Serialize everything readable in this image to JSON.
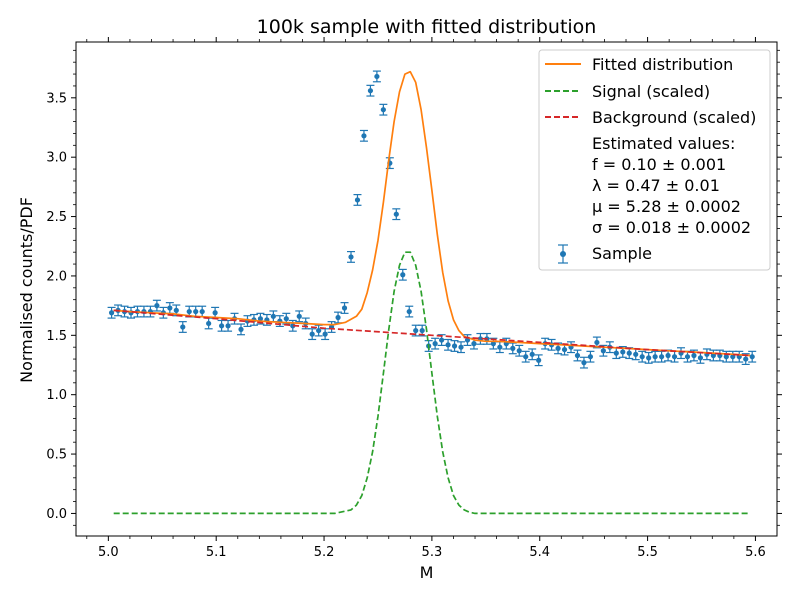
{
  "chart_data": {
    "type": "line",
    "title": "100k sample with fitted distribution",
    "xlabel": "M",
    "ylabel": "Normalised counts/PDF",
    "xlim": [
      4.97,
      5.62
    ],
    "ylim": [
      -0.19,
      3.97
    ],
    "grid": false,
    "legend_placement": "top-right",
    "x_ticks": [
      5.0,
      5.1,
      5.2,
      5.3,
      5.4,
      5.5,
      5.6
    ],
    "x_tick_labels": [
      "5.0",
      "5.1",
      "5.2",
      "5.3",
      "5.4",
      "5.5",
      "5.6"
    ],
    "y_ticks": [
      0.0,
      0.5,
      1.0,
      1.5,
      2.0,
      2.5,
      3.0,
      3.5
    ],
    "y_tick_labels": [
      "0.0",
      "0.5",
      "1.0",
      "1.5",
      "2.0",
      "2.5",
      "3.0",
      "3.5"
    ],
    "legend": {
      "entries": [
        {
          "label": "Fitted distribution",
          "color": "#ff7f0e",
          "style": "solid"
        },
        {
          "label": "Signal (scaled)",
          "color": "#2ca02c",
          "style": "dashed"
        },
        {
          "label": "Background (scaled)",
          "color": "#d62728",
          "style": "dashed"
        },
        {
          "label": "Sample",
          "color": "#1f77b4",
          "style": "errorbar"
        }
      ],
      "estimated_values": [
        "Estimated values:",
        "f = 0.10 ± 0.001",
        "λ = 0.47 ± 0.01",
        "μ = 5.28 ± 0.0002",
        "σ = 0.018 ± 0.0002"
      ]
    },
    "fit_params": {
      "f": 0.1,
      "lambda": 0.47,
      "mu": 5.28,
      "sigma": 0.018
    },
    "series": [
      {
        "name": "Sample",
        "kind": "errorbar",
        "color": "#1f77b4",
        "yerr": 0.045,
        "x": [
          5.003,
          5.009,
          5.015,
          5.021,
          5.027,
          5.033,
          5.039,
          5.045,
          5.051,
          5.057,
          5.063,
          5.069,
          5.075,
          5.081,
          5.087,
          5.093,
          5.099,
          5.105,
          5.111,
          5.117,
          5.123,
          5.129,
          5.135,
          5.141,
          5.147,
          5.153,
          5.159,
          5.165,
          5.171,
          5.177,
          5.183,
          5.189,
          5.195,
          5.201,
          5.207,
          5.213,
          5.219,
          5.225,
          5.231,
          5.237,
          5.243,
          5.249,
          5.255,
          5.261,
          5.267,
          5.273,
          5.279,
          5.285,
          5.291,
          5.297,
          5.303,
          5.309,
          5.315,
          5.321,
          5.327,
          5.333,
          5.339,
          5.345,
          5.351,
          5.357,
          5.363,
          5.369,
          5.375,
          5.381,
          5.387,
          5.393,
          5.399,
          5.405,
          5.411,
          5.417,
          5.423,
          5.429,
          5.435,
          5.441,
          5.447,
          5.453,
          5.459,
          5.465,
          5.471,
          5.477,
          5.483,
          5.489,
          5.495,
          5.501,
          5.507,
          5.513,
          5.519,
          5.525,
          5.531,
          5.537,
          5.543,
          5.549,
          5.555,
          5.561,
          5.567,
          5.573,
          5.579,
          5.585,
          5.591,
          5.597
        ],
        "y": [
          1.69,
          1.71,
          1.7,
          1.69,
          1.7,
          1.7,
          1.7,
          1.75,
          1.69,
          1.73,
          1.71,
          1.57,
          1.7,
          1.7,
          1.7,
          1.6,
          1.69,
          1.58,
          1.58,
          1.64,
          1.55,
          1.62,
          1.63,
          1.64,
          1.63,
          1.66,
          1.62,
          1.64,
          1.58,
          1.66,
          1.6,
          1.51,
          1.54,
          1.51,
          1.57,
          1.65,
          1.73,
          2.16,
          2.64,
          3.18,
          3.56,
          3.68,
          3.4,
          2.95,
          2.52,
          2.01,
          1.7,
          1.54,
          1.54,
          1.41,
          1.43,
          1.46,
          1.42,
          1.41,
          1.4,
          1.46,
          1.43,
          1.47,
          1.47,
          1.43,
          1.4,
          1.43,
          1.39,
          1.37,
          1.32,
          1.34,
          1.29,
          1.43,
          1.42,
          1.39,
          1.38,
          1.4,
          1.33,
          1.27,
          1.32,
          1.44,
          1.37,
          1.4,
          1.35,
          1.36,
          1.35,
          1.34,
          1.32,
          1.31,
          1.32,
          1.32,
          1.33,
          1.32,
          1.35,
          1.32,
          1.33,
          1.31,
          1.34,
          1.33,
          1.33,
          1.32,
          1.32,
          1.32,
          1.3,
          1.32
        ]
      },
      {
        "name": "Fitted distribution",
        "kind": "line",
        "color": "#ff7f0e",
        "x": [
          5.005,
          5.02,
          5.04,
          5.06,
          5.08,
          5.1,
          5.12,
          5.14,
          5.16,
          5.18,
          5.2,
          5.21,
          5.22,
          5.23,
          5.235,
          5.24,
          5.245,
          5.25,
          5.255,
          5.26,
          5.265,
          5.27,
          5.275,
          5.28,
          5.285,
          5.29,
          5.295,
          5.3,
          5.305,
          5.31,
          5.315,
          5.32,
          5.325,
          5.33,
          5.34,
          5.35,
          5.36,
          5.38,
          5.4,
          5.42,
          5.44,
          5.46,
          5.48,
          5.5,
          5.52,
          5.54,
          5.56,
          5.58,
          5.595
        ],
        "y": [
          1.71,
          1.7,
          1.69,
          1.68,
          1.66,
          1.65,
          1.64,
          1.62,
          1.61,
          1.6,
          1.59,
          1.59,
          1.61,
          1.66,
          1.72,
          1.86,
          2.05,
          2.3,
          2.62,
          2.98,
          3.3,
          3.55,
          3.7,
          3.72,
          3.63,
          3.4,
          3.08,
          2.72,
          2.35,
          2.03,
          1.79,
          1.63,
          1.54,
          1.49,
          1.46,
          1.45,
          1.45,
          1.44,
          1.43,
          1.42,
          1.41,
          1.4,
          1.39,
          1.38,
          1.37,
          1.36,
          1.35,
          1.34,
          1.33
        ]
      },
      {
        "name": "Signal (scaled)",
        "kind": "line",
        "color": "#2ca02c",
        "style": "dashed",
        "x": [
          5.005,
          5.1,
          5.2,
          5.21,
          5.22,
          5.225,
          5.23,
          5.235,
          5.24,
          5.245,
          5.25,
          5.255,
          5.26,
          5.265,
          5.27,
          5.275,
          5.28,
          5.285,
          5.29,
          5.295,
          5.3,
          5.305,
          5.31,
          5.315,
          5.32,
          5.325,
          5.33,
          5.335,
          5.34,
          5.35,
          5.36,
          5.4,
          5.5,
          5.595
        ],
        "y": [
          0.0,
          0.0,
          0.0,
          0.0,
          0.02,
          0.03,
          0.07,
          0.15,
          0.3,
          0.52,
          0.82,
          1.18,
          1.55,
          1.87,
          2.09,
          2.2,
          2.2,
          2.09,
          1.87,
          1.55,
          1.18,
          0.82,
          0.52,
          0.3,
          0.15,
          0.07,
          0.03,
          0.01,
          0.0,
          0.0,
          0.0,
          0.0,
          0.0,
          0.0
        ]
      },
      {
        "name": "Background (scaled)",
        "kind": "line",
        "color": "#d62728",
        "style": "dashed",
        "x": [
          5.005,
          5.1,
          5.2,
          5.3,
          5.4,
          5.5,
          5.595
        ],
        "y": [
          1.71,
          1.64,
          1.56,
          1.5,
          1.44,
          1.38,
          1.33
        ]
      }
    ]
  }
}
